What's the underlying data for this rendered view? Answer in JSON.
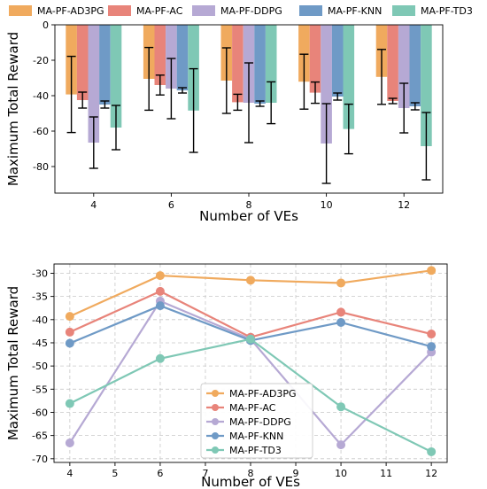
{
  "chart_data": [
    {
      "type": "bar",
      "xlabel": "Number of VEs",
      "ylabel": "Maximum Total Reward",
      "categories": [
        "4",
        "6",
        "8",
        "10",
        "12"
      ],
      "ylim": [
        -95,
        0
      ],
      "yticks": [
        0,
        -20,
        -40,
        -60,
        -80
      ],
      "grid": false,
      "legend_position": "top",
      "series": [
        {
          "name": "MA-PF-AD3PG",
          "color": "#f0aa5e",
          "values": [
            -39.3,
            -30.5,
            -31.5,
            -32.1,
            -29.4
          ],
          "err": [
            21.5,
            17.7,
            18.5,
            15.5,
            15.5
          ]
        },
        {
          "name": "MA-PF-AC",
          "color": "#e8847a",
          "values": [
            -42.5,
            -34.0,
            -43.7,
            -38.3,
            -43.0
          ],
          "err": [
            4.5,
            5.6,
            4.5,
            6.0,
            1.5
          ]
        },
        {
          "name": "MA-PF-DDPG",
          "color": "#b6a9d4",
          "values": [
            -66.5,
            -36.0,
            -44.0,
            -67.0,
            -47.0
          ],
          "err": [
            14.5,
            17.0,
            22.5,
            22.5,
            14.0
          ]
        },
        {
          "name": "MA-PF-KNN",
          "color": "#6f9ac6",
          "values": [
            -45.0,
            -37.0,
            -44.5,
            -40.5,
            -46.0
          ],
          "err": [
            2.0,
            1.5,
            1.5,
            2.0,
            2.0
          ]
        },
        {
          "name": "MA-PF-TD3",
          "color": "#7fc8b5",
          "values": [
            -58.0,
            -48.4,
            -44.0,
            -58.8,
            -68.5
          ],
          "err": [
            12.5,
            23.6,
            11.8,
            14.0,
            19.0
          ]
        }
      ]
    },
    {
      "type": "line",
      "xlabel": "Number of VEs",
      "ylabel": "Maximum Total Reward",
      "x": [
        4,
        6,
        8,
        10,
        12
      ],
      "xlim": [
        3.65,
        12.35
      ],
      "xticks": [
        4,
        5,
        6,
        7,
        8,
        9,
        10,
        11,
        12
      ],
      "ylim": [
        -70.8,
        -28.0
      ],
      "yticks": [
        -30,
        -35,
        -40,
        -45,
        -50,
        -55,
        -60,
        -65,
        -70
      ],
      "grid": true,
      "legend_position": "lower center",
      "series": [
        {
          "name": "MA-PF-AD3PG",
          "color": "#f0aa5e",
          "values": [
            -39.3,
            -30.5,
            -31.5,
            -32.1,
            -29.4
          ]
        },
        {
          "name": "MA-PF-AC",
          "color": "#e8847a",
          "values": [
            -42.7,
            -33.9,
            -43.8,
            -38.4,
            -43.1
          ]
        },
        {
          "name": "MA-PF-DDPG",
          "color": "#b6a9d4",
          "values": [
            -66.6,
            -36.0,
            -44.2,
            -67.0,
            -47.0
          ]
        },
        {
          "name": "MA-PF-KNN",
          "color": "#6f9ac6",
          "values": [
            -45.1,
            -37.0,
            -44.5,
            -40.6,
            -45.8
          ]
        },
        {
          "name": "MA-PF-TD3",
          "color": "#7fc8b5",
          "values": [
            -58.1,
            -48.4,
            -44.2,
            -58.8,
            -68.5
          ]
        }
      ]
    }
  ]
}
